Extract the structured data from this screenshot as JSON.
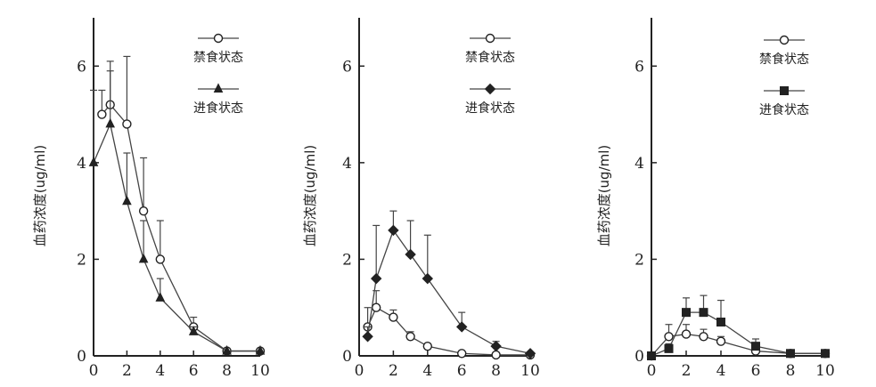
{
  "chart_data": [
    {
      "type": "line",
      "title": "",
      "xlabel": "",
      "ylabel": "血药浓度(ug/ml)",
      "xlim": [
        0,
        10
      ],
      "ylim": [
        0,
        7
      ],
      "xticks": [
        "0",
        "2",
        "4",
        "6",
        "8",
        "10"
      ],
      "yticks": [
        "0",
        "2",
        "4",
        "6"
      ],
      "grid": false,
      "legend_position": "top-right",
      "series": [
        {
          "name": "禁食状态",
          "marker": "circle",
          "fill": "#ffffff",
          "x": [
            0.5,
            1,
            2,
            3,
            4,
            6,
            8,
            10
          ],
          "y": [
            5.0,
            5.2,
            4.8,
            3.0,
            2.0,
            0.6,
            0.1,
            0.1
          ],
          "err": [
            0.5,
            0.9,
            1.4,
            1.1,
            0.8,
            0.2,
            0.05,
            0.05
          ]
        },
        {
          "name": "进食状态",
          "marker": "triangle",
          "fill": "#222222",
          "x": [
            0,
            1,
            2,
            3,
            4,
            6,
            8,
            10
          ],
          "y": [
            4.0,
            4.8,
            3.2,
            2.0,
            1.2,
            0.5,
            0.1,
            0.1
          ],
          "err": [
            1.5,
            1.1,
            1.0,
            0.8,
            0.4,
            0.1,
            0.05,
            0.05
          ]
        }
      ]
    },
    {
      "type": "line",
      "title": "",
      "xlabel": "",
      "ylabel": "血药浓度(ug/ml)",
      "xlim": [
        0,
        10
      ],
      "ylim": [
        0,
        7
      ],
      "xticks": [
        "0",
        "2",
        "4",
        "6",
        "8",
        "10"
      ],
      "yticks": [
        "0",
        "2",
        "4",
        "6"
      ],
      "grid": false,
      "legend_position": "top-right",
      "series": [
        {
          "name": "禁食状态",
          "marker": "circle",
          "fill": "#ffffff",
          "x": [
            0.5,
            1,
            2,
            3,
            4,
            6,
            8,
            10
          ],
          "y": [
            0.6,
            1.0,
            0.8,
            0.4,
            0.2,
            0.05,
            0.02,
            0.02
          ],
          "err": [
            0.4,
            0.35,
            0.15,
            0.1,
            0.05,
            0.02,
            0.02,
            0.02
          ]
        },
        {
          "name": "进食状态",
          "marker": "diamond",
          "fill": "#222222",
          "x": [
            0.5,
            1,
            2,
            3,
            4,
            6,
            8,
            10
          ],
          "y": [
            0.4,
            1.6,
            2.6,
            2.1,
            1.6,
            0.6,
            0.2,
            0.05
          ],
          "err": [
            0.2,
            1.1,
            0.4,
            0.7,
            0.9,
            0.3,
            0.1,
            0.05
          ]
        }
      ]
    },
    {
      "type": "line",
      "title": "",
      "xlabel": "",
      "ylabel": "血药浓度(ug/ml)",
      "xlim": [
        0,
        10
      ],
      "ylim": [
        0,
        7
      ],
      "xticks": [
        "0",
        "2",
        "4",
        "6",
        "8",
        "10"
      ],
      "yticks": [
        "0",
        "2",
        "4",
        "6"
      ],
      "grid": false,
      "legend_position": "top-right",
      "series": [
        {
          "name": "禁食状态",
          "marker": "circle",
          "fill": "#ffffff",
          "x": [
            0,
            1,
            2,
            3,
            4,
            6,
            8,
            10
          ],
          "y": [
            0.0,
            0.4,
            0.45,
            0.4,
            0.3,
            0.1,
            0.05,
            0.05
          ],
          "err": [
            0.02,
            0.25,
            0.2,
            0.15,
            0.1,
            0.05,
            0.02,
            0.02
          ]
        },
        {
          "name": "进食状态",
          "marker": "square",
          "fill": "#222222",
          "x": [
            0,
            1,
            2,
            3,
            4,
            6,
            8,
            10
          ],
          "y": [
            0.0,
            0.15,
            0.9,
            0.9,
            0.7,
            0.2,
            0.05,
            0.05
          ],
          "err": [
            0.02,
            0.1,
            0.3,
            0.35,
            0.45,
            0.15,
            0.05,
            0.02
          ]
        }
      ]
    }
  ]
}
